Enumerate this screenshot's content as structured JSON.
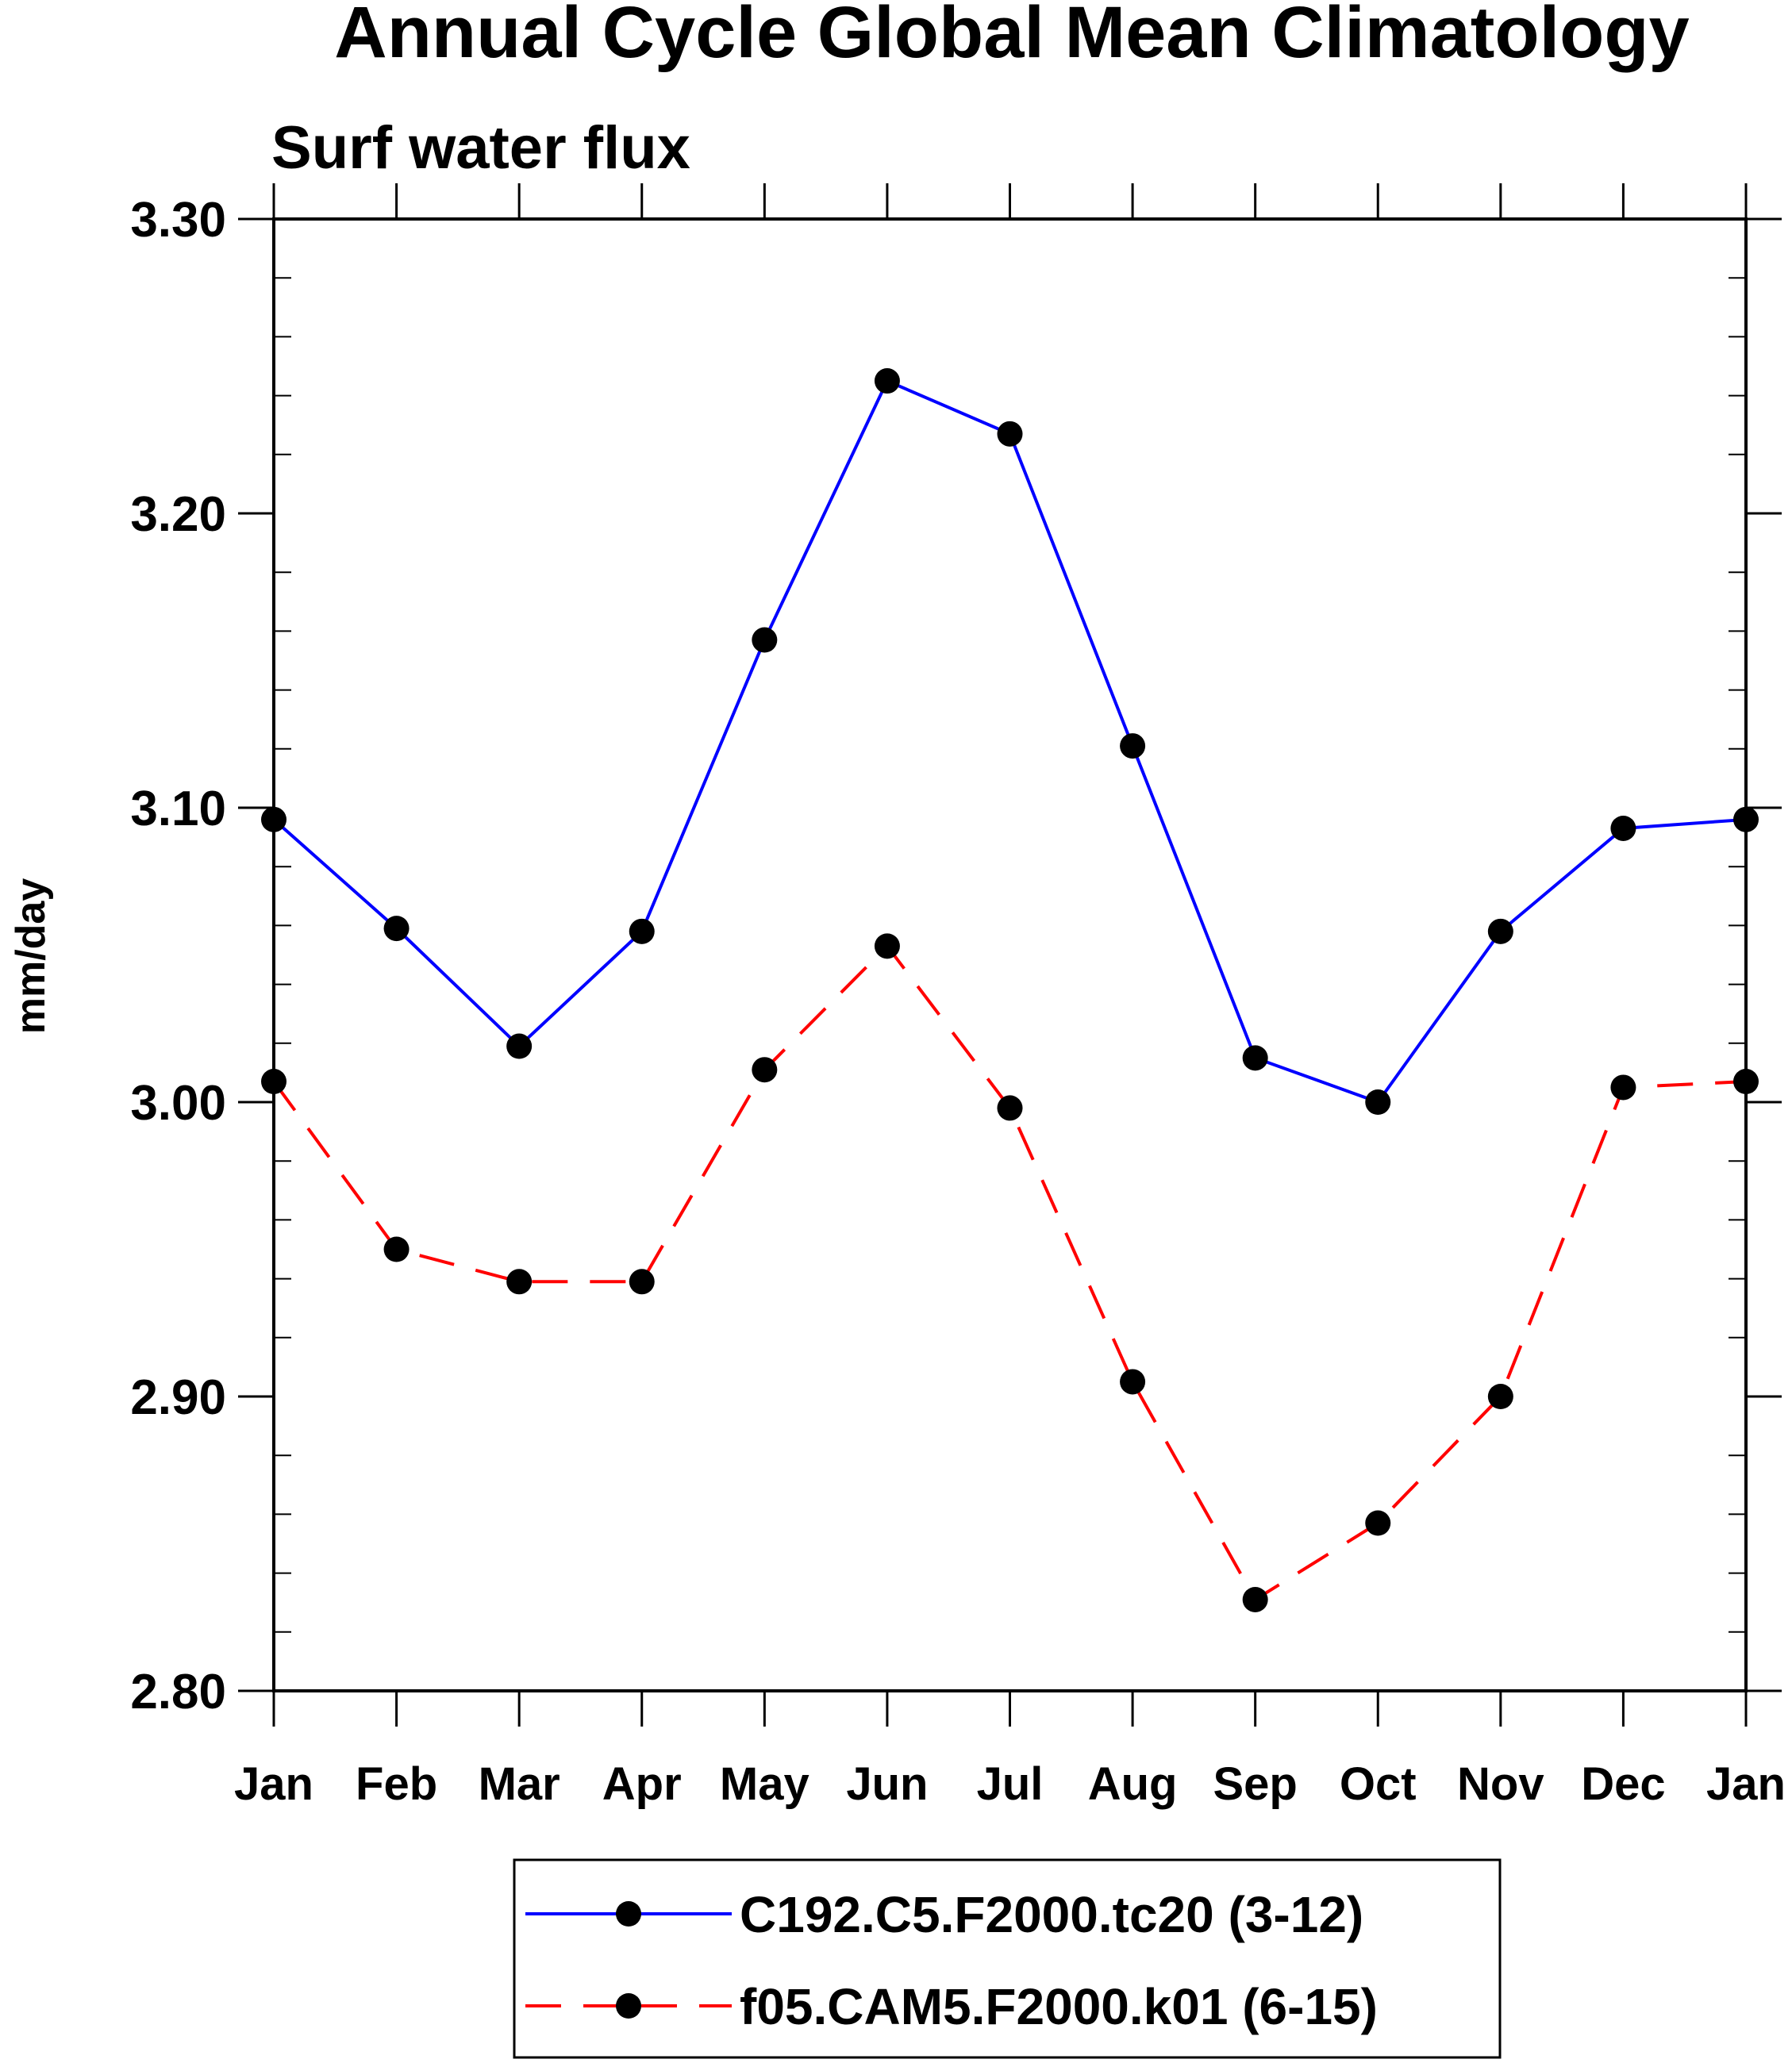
{
  "chart_data": {
    "type": "line",
    "title": "Annual Cycle Global Mean Climatology",
    "subtitle": "Surf water flux",
    "ylabel": "mm/day",
    "xlabel": "",
    "ylim": [
      2.8,
      3.3
    ],
    "yticks": [
      "2.80",
      "2.90",
      "3.00",
      "3.10",
      "3.20",
      "3.30"
    ],
    "categories": [
      "Jan",
      "Feb",
      "Mar",
      "Apr",
      "May",
      "Jun",
      "Jul",
      "Aug",
      "Sep",
      "Oct",
      "Nov",
      "Dec",
      "Jan"
    ],
    "grid": false,
    "legend_position": "bottom",
    "series": [
      {
        "name": "C192.C5.F2000.tc20 (3-12)",
        "color": "#0000ff",
        "dash": "solid",
        "values": [
          3.096,
          3.059,
          3.019,
          3.058,
          3.157,
          3.245,
          3.227,
          3.121,
          3.015,
          3.0,
          3.058,
          3.093,
          3.096
        ]
      },
      {
        "name": "f05.CAM5.F2000.k01 (6-15)",
        "color": "#ff0000",
        "dash": "dashed",
        "values": [
          3.007,
          2.95,
          2.939,
          2.939,
          3.011,
          3.053,
          2.998,
          2.905,
          2.831,
          2.857,
          2.9,
          3.005,
          3.007
        ]
      }
    ]
  }
}
